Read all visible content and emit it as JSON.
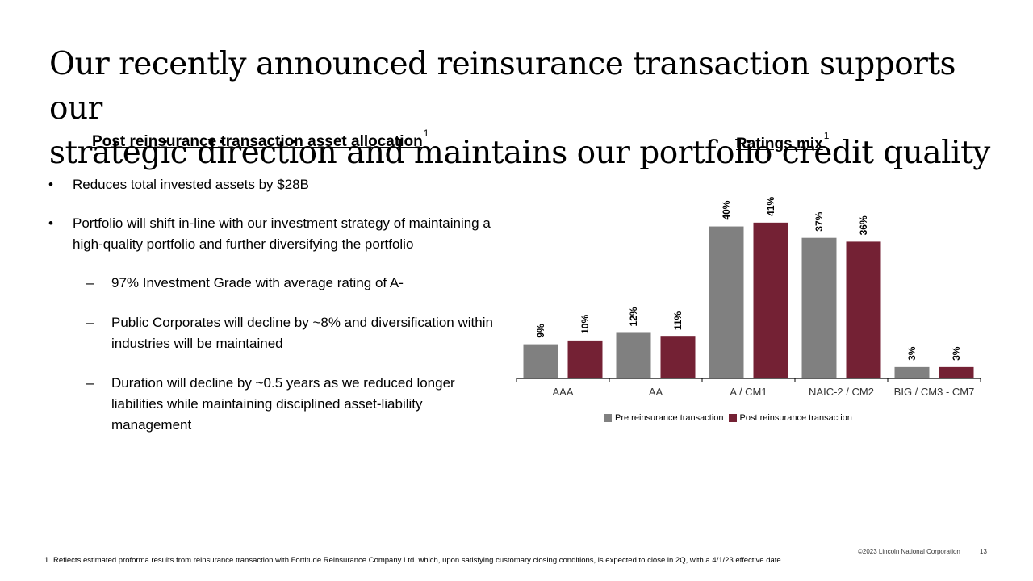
{
  "title": {
    "line1": "Our recently announced reinsurance transaction supports our",
    "line2": "strategic direction and maintains our portfolio credit quality"
  },
  "left_section": {
    "heading": "Post reinsurance transaction asset allocation",
    "footnote_ref": "1",
    "bullets": [
      "Reduces total invested assets by $28B",
      "Portfolio will shift in-line with our investment strategy of maintaining a high-quality portfolio and further diversifying the portfolio"
    ],
    "bullet_marker": "•",
    "dash_marker": "–",
    "sub_bullets": [
      "97% Investment Grade with average rating of A-",
      "Public Corporates will decline by ~8% and diversification within industries will be maintained",
      "Duration will decline by ~0.5 years as we reduced longer liabilities while maintaining disciplined asset-liability management"
    ]
  },
  "right_section": {
    "heading": "Ratings mix",
    "footnote_ref": "1"
  },
  "chart_data": {
    "type": "bar",
    "title": "Ratings mix",
    "categories": [
      "AAA",
      "AA",
      "A / CM1",
      "NAIC-2 / CM2",
      "BIG / CM3 - CM7"
    ],
    "series": [
      {
        "name": "Pre reinsurance transaction",
        "values": [
          9,
          12,
          40,
          37,
          3
        ],
        "labels": [
          "9%",
          "12%",
          "40%",
          "37%",
          "3%"
        ],
        "color": "#808080"
      },
      {
        "name": "Post reinsurance transaction",
        "values": [
          10,
          11,
          41,
          36,
          3
        ],
        "labels": [
          "10%",
          "11%",
          "41%",
          "36%",
          "3%"
        ],
        "color": "#742134"
      }
    ],
    "ylim": [
      0,
      45
    ],
    "legend": "bottom",
    "grid": false
  },
  "footer": {
    "copyright": "©2023 Lincoln National Corporation",
    "page_number": "13",
    "footnote_number": "1",
    "footnote_text": "Reflects estimated proforma results from reinsurance transaction with Fortitude Reinsurance Company Ltd. which, upon satisfying customary closing conditions, is expected to close in 2Q, with a 4/1/23 effective date."
  }
}
